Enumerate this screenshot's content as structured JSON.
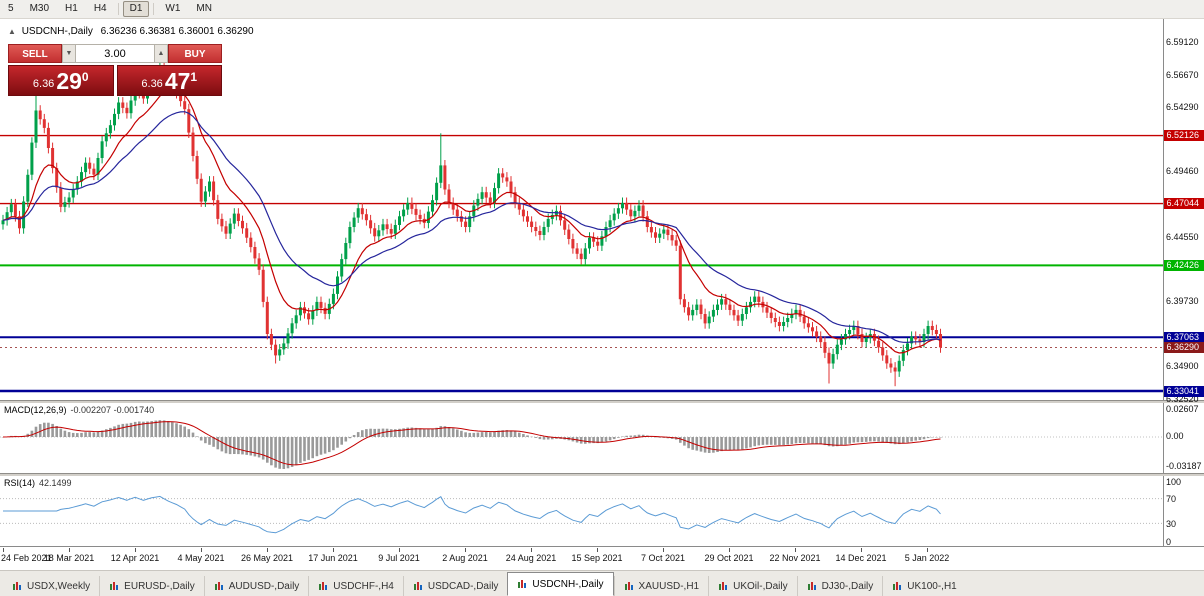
{
  "toolbar": {
    "buttons": [
      {
        "label": "5"
      },
      {
        "label": "M30"
      },
      {
        "label": "H1"
      },
      {
        "label": "H4"
      },
      {
        "label": "D1"
      },
      {
        "label": "W1"
      },
      {
        "label": "MN"
      }
    ],
    "active": "D1"
  },
  "chart_header": {
    "collapse_icon": "▲",
    "title": "USDCNH-,Daily",
    "ohlc": "6.36236 6.36381 6.36001 6.36290"
  },
  "trade_panel": {
    "sell_label": "SELL",
    "buy_label": "BUY",
    "volume": "3.00",
    "dec_glyph": "▼",
    "inc_glyph": "▲",
    "sell_price": {
      "base": "6.36",
      "big": "29",
      "sup": "0"
    },
    "buy_price": {
      "base": "6.36",
      "big": "47",
      "sup": "1"
    }
  },
  "price_axis_labels": [
    {
      "text": "6.59120"
    },
    {
      "text": "6.56670"
    },
    {
      "text": "6.54290"
    },
    {
      "text": "6.49460"
    },
    {
      "text": "6.44550"
    },
    {
      "text": "6.39730"
    },
    {
      "text": "6.34900"
    },
    {
      "text": "6.32520"
    }
  ],
  "levels": [
    {
      "label": "6.52126",
      "price": 6.52126,
      "color": "#c40000",
      "width": 1.4
    },
    {
      "label": "6.47044",
      "price": 6.47044,
      "color": "#c40000",
      "width": 1.4
    },
    {
      "label": "6.42426",
      "price": 6.42426,
      "color": "#00b400",
      "width": 2
    },
    {
      "label": "6.37063",
      "price": 6.37063,
      "color": "#000096",
      "width": 2
    },
    {
      "label": "6.33041",
      "price": 6.33041,
      "color": "#000096",
      "width": 2.4
    }
  ],
  "bid": {
    "label": "6.36290",
    "price": 6.3629,
    "color": "#8b1a1a"
  },
  "macd_panel": {
    "title": "MACD(12,26,9)",
    "values": "-0.002207 -0.001740",
    "axis": [
      {
        "text": "0.02607"
      },
      {
        "text": "0.00"
      },
      {
        "text": "-0.03187"
      }
    ]
  },
  "rsi_panel": {
    "title": "RSI(14)",
    "value": "42.1499",
    "axis": [
      {
        "text": "100"
      },
      {
        "text": "70"
      },
      {
        "text": "30"
      },
      {
        "text": "0"
      }
    ]
  },
  "tabs": {
    "items": [
      {
        "label": "USDX,Weekly"
      },
      {
        "label": "EURUSD-,Daily"
      },
      {
        "label": "AUDUSD-,Daily"
      },
      {
        "label": "USDCHF-,H4"
      },
      {
        "label": "USDCAD-,Daily"
      },
      {
        "label": "USDCNH-,Daily"
      },
      {
        "label": "XAUUSD-,H1"
      },
      {
        "label": "UKOil-,Daily"
      },
      {
        "label": "DJ30-,Daily"
      },
      {
        "label": "UK100-,H1"
      }
    ],
    "active": "USDCNH-,Daily"
  },
  "chart_data": {
    "type": "candlestick",
    "symbol": "USDCNH-",
    "timeframe": "Daily",
    "title": "USDCNH-,Daily",
    "bars": 228,
    "price_range": [
      6.3252,
      6.5912
    ],
    "x_axis_dates": [
      "24 Feb 2021",
      "18 Mar 2021",
      "12 Apr 2021",
      "4 May 2021",
      "26 May 2021",
      "17 Jun 2021",
      "9 Jul 2021",
      "2 Aug 2021",
      "24 Aug 2021",
      "15 Sep 2021",
      "7 Oct 2021",
      "29 Oct 2021",
      "22 Nov 2021",
      "14 Dec 2021",
      "5 Jan 2022"
    ],
    "close_anchors": [
      [
        0,
        6.458
      ],
      [
        2,
        6.47
      ],
      [
        4,
        6.452
      ],
      [
        6,
        6.492
      ],
      [
        8,
        6.54
      ],
      [
        10,
        6.527
      ],
      [
        12,
        6.497
      ],
      [
        14,
        6.468
      ],
      [
        16,
        6.475
      ],
      [
        18,
        6.487
      ],
      [
        20,
        6.501
      ],
      [
        22,
        6.492
      ],
      [
        24,
        6.517
      ],
      [
        26,
        6.529
      ],
      [
        28,
        6.546
      ],
      [
        30,
        6.538
      ],
      [
        32,
        6.557
      ],
      [
        34,
        6.549
      ],
      [
        36,
        6.563
      ],
      [
        38,
        6.572
      ],
      [
        40,
        6.561
      ],
      [
        42,
        6.553
      ],
      [
        44,
        6.541
      ],
      [
        46,
        6.506
      ],
      [
        48,
        6.472
      ],
      [
        50,
        6.487
      ],
      [
        52,
        6.459
      ],
      [
        54,
        6.448
      ],
      [
        56,
        6.463
      ],
      [
        58,
        6.452
      ],
      [
        60,
        6.438
      ],
      [
        62,
        6.421
      ],
      [
        64,
        6.373
      ],
      [
        66,
        6.357
      ],
      [
        68,
        6.366
      ],
      [
        70,
        6.381
      ],
      [
        72,
        6.393
      ],
      [
        74,
        6.384
      ],
      [
        76,
        6.397
      ],
      [
        78,
        6.388
      ],
      [
        80,
        6.403
      ],
      [
        82,
        6.429
      ],
      [
        84,
        6.453
      ],
      [
        86,
        6.467
      ],
      [
        88,
        6.458
      ],
      [
        90,
        6.446
      ],
      [
        92,
        6.455
      ],
      [
        94,
        6.448
      ],
      [
        96,
        6.461
      ],
      [
        98,
        6.471
      ],
      [
        100,
        6.462
      ],
      [
        102,
        6.456
      ],
      [
        104,
        6.473
      ],
      [
        106,
        6.499
      ],
      [
        107,
        6.481
      ],
      [
        108,
        6.471
      ],
      [
        110,
        6.461
      ],
      [
        112,
        6.453
      ],
      [
        114,
        6.469
      ],
      [
        116,
        6.479
      ],
      [
        118,
        6.471
      ],
      [
        120,
        6.493
      ],
      [
        122,
        6.487
      ],
      [
        124,
        6.471
      ],
      [
        126,
        6.461
      ],
      [
        128,
        6.453
      ],
      [
        130,
        6.447
      ],
      [
        132,
        6.459
      ],
      [
        134,
        6.465
      ],
      [
        136,
        6.451
      ],
      [
        138,
        6.437
      ],
      [
        140,
        6.429
      ],
      [
        142,
        6.445
      ],
      [
        144,
        6.439
      ],
      [
        146,
        6.453
      ],
      [
        148,
        6.463
      ],
      [
        150,
        6.471
      ],
      [
        152,
        6.461
      ],
      [
        154,
        6.469
      ],
      [
        156,
        6.453
      ],
      [
        158,
        6.445
      ],
      [
        160,
        6.451
      ],
      [
        162,
        6.443
      ],
      [
        163,
        6.439
      ],
      [
        164,
        6.399
      ],
      [
        166,
        6.387
      ],
      [
        168,
        6.395
      ],
      [
        170,
        6.381
      ],
      [
        172,
        6.391
      ],
      [
        174,
        6.399
      ],
      [
        176,
        6.391
      ],
      [
        178,
        6.383
      ],
      [
        180,
        6.393
      ],
      [
        182,
        6.401
      ],
      [
        184,
        6.393
      ],
      [
        186,
        6.385
      ],
      [
        188,
        6.379
      ],
      [
        190,
        6.385
      ],
      [
        192,
        6.391
      ],
      [
        194,
        6.381
      ],
      [
        196,
        6.375
      ],
      [
        198,
        6.367
      ],
      [
        200,
        6.351
      ],
      [
        202,
        6.365
      ],
      [
        204,
        6.373
      ],
      [
        206,
        6.379
      ],
      [
        208,
        6.367
      ],
      [
        210,
        6.373
      ],
      [
        212,
        6.363
      ],
      [
        214,
        6.351
      ],
      [
        216,
        6.345
      ],
      [
        218,
        6.361
      ],
      [
        220,
        6.371
      ],
      [
        222,
        6.367
      ],
      [
        224,
        6.379
      ],
      [
        226,
        6.373
      ],
      [
        227,
        6.363
      ]
    ],
    "high_overrides": {
      "8": 6.552,
      "38": 6.578,
      "106": 6.523
    },
    "low_overrides": {
      "66": 6.351,
      "200": 6.336,
      "216": 6.334
    },
    "wick": 0.004,
    "up_color": "#00a04a",
    "down_color": "#e03232",
    "overlays": [
      {
        "name": "EMA fast",
        "period": 12,
        "color": "#c40000"
      },
      {
        "name": "EMA slow",
        "period": 26,
        "color": "#26269c"
      }
    ],
    "macd": {
      "fast": 12,
      "slow": 26,
      "signal_period": 9,
      "hist_color": "#9a9a9a",
      "signal_color": "#c40000",
      "range": [
        -0.03187,
        0.02607
      ]
    },
    "rsi": {
      "period": 14,
      "color": "#5b9bd5",
      "levels": [
        70,
        30
      ],
      "range": [
        0,
        100
      ],
      "current": 42.1499
    }
  }
}
